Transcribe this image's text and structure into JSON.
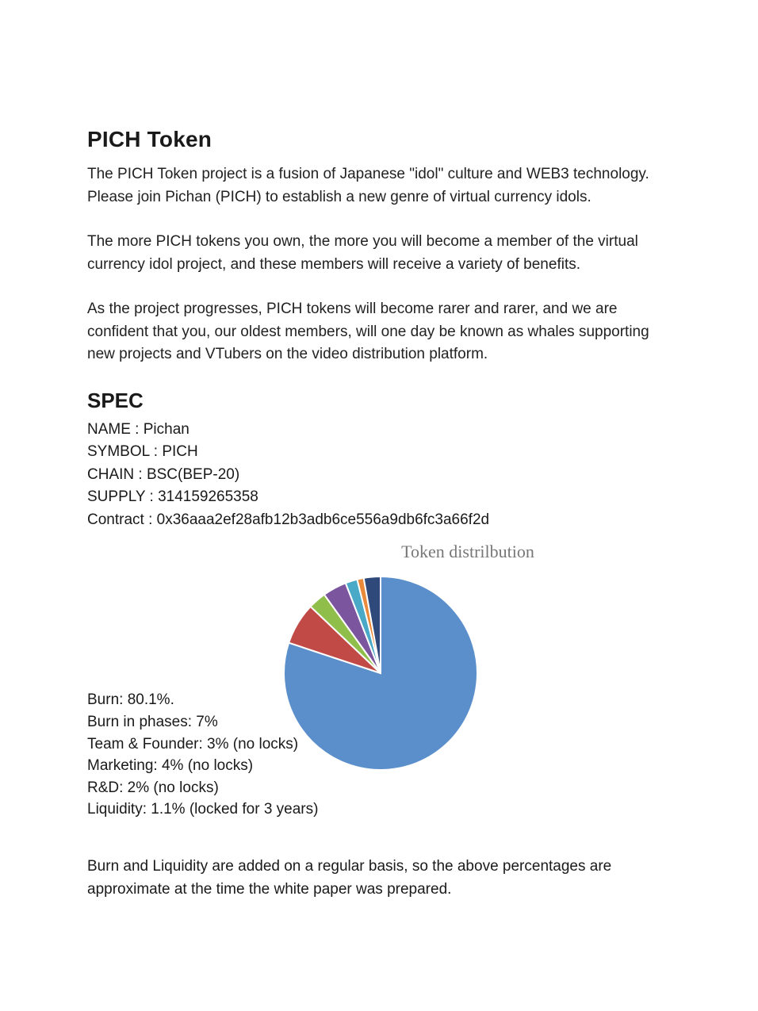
{
  "title": "PICH Token",
  "paragraphs": [
    "The PICH Token project is a fusion of Japanese \"idol\" culture and WEB3 technology. Please join Pichan (PICH) to establish a new genre of virtual currency idols.",
    "The more PICH tokens you own, the more you will become a member of the virtual currency idol project, and these members will receive a variety of benefits.",
    "As the project progresses, PICH tokens will become rarer and rarer, and we are confident that you, our oldest members, will one day be known as whales supporting new projects and VTubers on the video distribution platform."
  ],
  "spec": {
    "heading": "SPEC",
    "lines": [
      "NAME : Pichan",
      "SYMBOL : PICH",
      "CHAIN : BSC(BEP-20)",
      "SUPPLY : 314159265358",
      "Contract : 0x36aaa2ef28afb12b3adb6ce556a9db6fc3a66f2d"
    ]
  },
  "chart": {
    "type": "pie",
    "title": "Token distrilbution",
    "title_fontsize": 22,
    "title_color": "#777777",
    "background_color": "#ffffff",
    "stroke_color": "#ffffff",
    "stroke_width": 2,
    "radius": 122,
    "start_angle_deg": -90,
    "slices": [
      {
        "label": "Burn",
        "value": 80.1,
        "color": "#5b8fcb"
      },
      {
        "label": "Burn in phases",
        "value": 7,
        "color": "#c24a46"
      },
      {
        "label": "Team & Founder",
        "value": 3,
        "color": "#8fbf4a"
      },
      {
        "label": "Marketing",
        "value": 4,
        "color": "#7b569e"
      },
      {
        "label": "R&D",
        "value": 2,
        "color": "#4aa9c6"
      },
      {
        "label": "Liquidity (1)",
        "value": 1.1,
        "color": "#e98a3a"
      },
      {
        "label": "Liquidity (2)",
        "value": 2.8,
        "color": "#2f4a7a"
      }
    ]
  },
  "distribution_list": [
    "Burn: 80.1%.",
    "Burn in phases: 7%",
    "Team & Founder: 3% (no locks)",
    "Marketing: 4% (no locks)",
    "R&D: 2% (no locks)",
    "Liquidity: 1.1% (locked for 3 years)"
  ],
  "note": "Burn and Liquidity are added on a regular basis, so the above percentages are approximate at the time the white paper was prepared."
}
